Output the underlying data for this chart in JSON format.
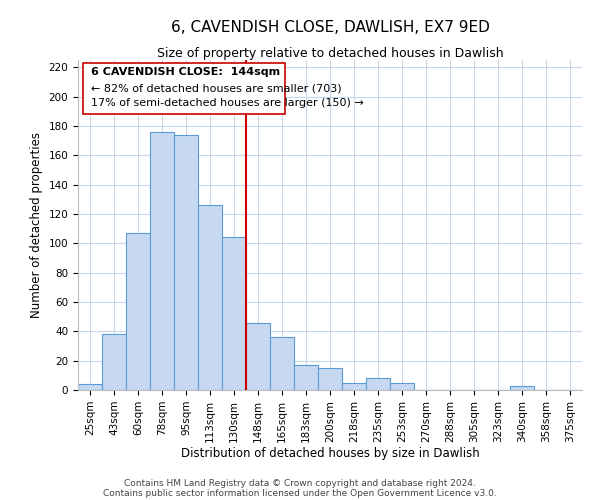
{
  "title": "6, CAVENDISH CLOSE, DAWLISH, EX7 9ED",
  "subtitle": "Size of property relative to detached houses in Dawlish",
  "xlabel": "Distribution of detached houses by size in Dawlish",
  "ylabel": "Number of detached properties",
  "bin_labels": [
    "25sqm",
    "43sqm",
    "60sqm",
    "78sqm",
    "95sqm",
    "113sqm",
    "130sqm",
    "148sqm",
    "165sqm",
    "183sqm",
    "200sqm",
    "218sqm",
    "235sqm",
    "253sqm",
    "270sqm",
    "288sqm",
    "305sqm",
    "323sqm",
    "340sqm",
    "358sqm",
    "375sqm"
  ],
  "bar_heights": [
    4,
    38,
    107,
    176,
    174,
    126,
    104,
    46,
    36,
    17,
    15,
    5,
    8,
    5,
    0,
    0,
    0,
    0,
    3,
    0,
    0
  ],
  "bar_color": "#c6d9f1",
  "bar_edge_color": "#5b9bd5",
  "vline_x": 7.5,
  "vline_color": "#cc0000",
  "ylim": [
    0,
    225
  ],
  "yticks": [
    0,
    20,
    40,
    60,
    80,
    100,
    120,
    140,
    160,
    180,
    200,
    220
  ],
  "annotation_title": "6 CAVENDISH CLOSE:  144sqm",
  "annotation_line1": "← 82% of detached houses are smaller (703)",
  "annotation_line2": "17% of semi-detached houses are larger (150) →",
  "footer1": "Contains HM Land Registry data © Crown copyright and database right 2024.",
  "footer2": "Contains public sector information licensed under the Open Government Licence v3.0.",
  "background_color": "#ffffff",
  "grid_color": "#c8d8ec",
  "title_fontsize": 11,
  "subtitle_fontsize": 9,
  "axis_label_fontsize": 8.5,
  "tick_fontsize": 7.5,
  "annotation_fontsize": 8,
  "footer_fontsize": 6.5
}
